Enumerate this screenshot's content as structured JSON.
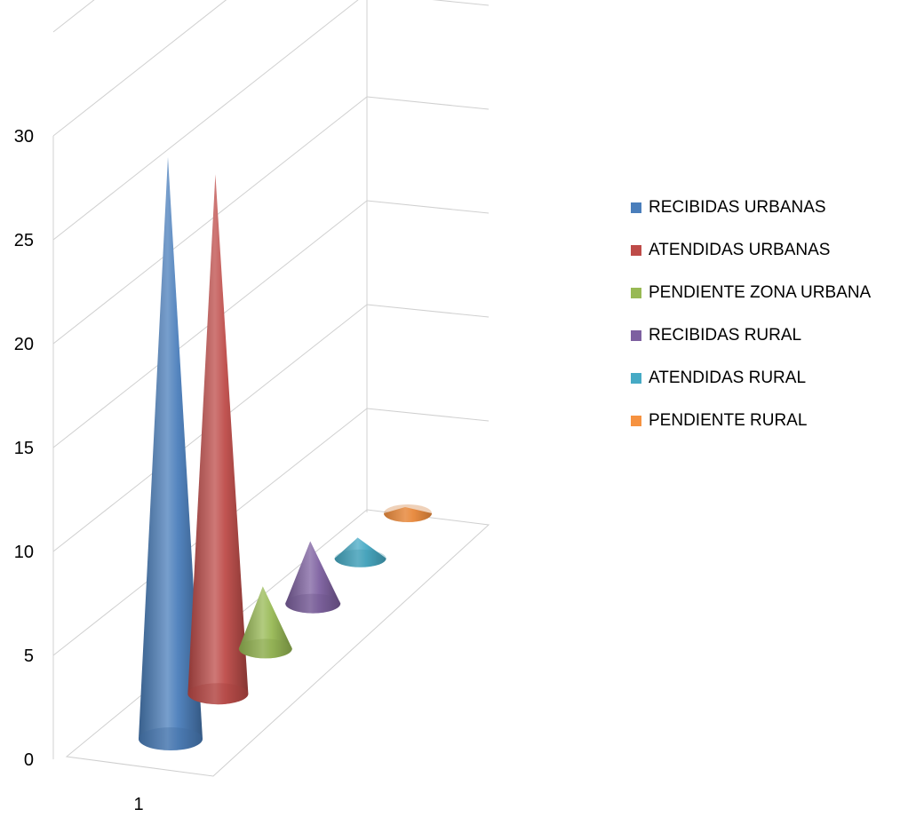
{
  "chart_data": {
    "type": "bar",
    "subtype": "3d-cone",
    "categories": [
      "1"
    ],
    "series": [
      {
        "name": "RECIBIDAS URBANAS",
        "values": [
          28
        ],
        "color": "#4a7ebb"
      },
      {
        "name": "ATENDIDAS URBANAS",
        "values": [
          25
        ],
        "color": "#be4b48"
      },
      {
        "name": "PENDIENTE ZONA URBANA",
        "values": [
          3
        ],
        "color": "#98b954"
      },
      {
        "name": "RECIBIDAS RURAL",
        "values": [
          3
        ],
        "color": "#7d60a0"
      },
      {
        "name": "ATENDIDAS RURAL",
        "values": [
          1
        ],
        "color": "#46aac5"
      },
      {
        "name": "PENDIENTE RURAL",
        "values": [
          0.3
        ],
        "color": "#f69240"
      }
    ],
    "y_ticks": [
      "0",
      "5",
      "10",
      "15",
      "20",
      "25",
      "30"
    ],
    "ylim": [
      0,
      35
    ],
    "grid": true,
    "legend": "right"
  }
}
